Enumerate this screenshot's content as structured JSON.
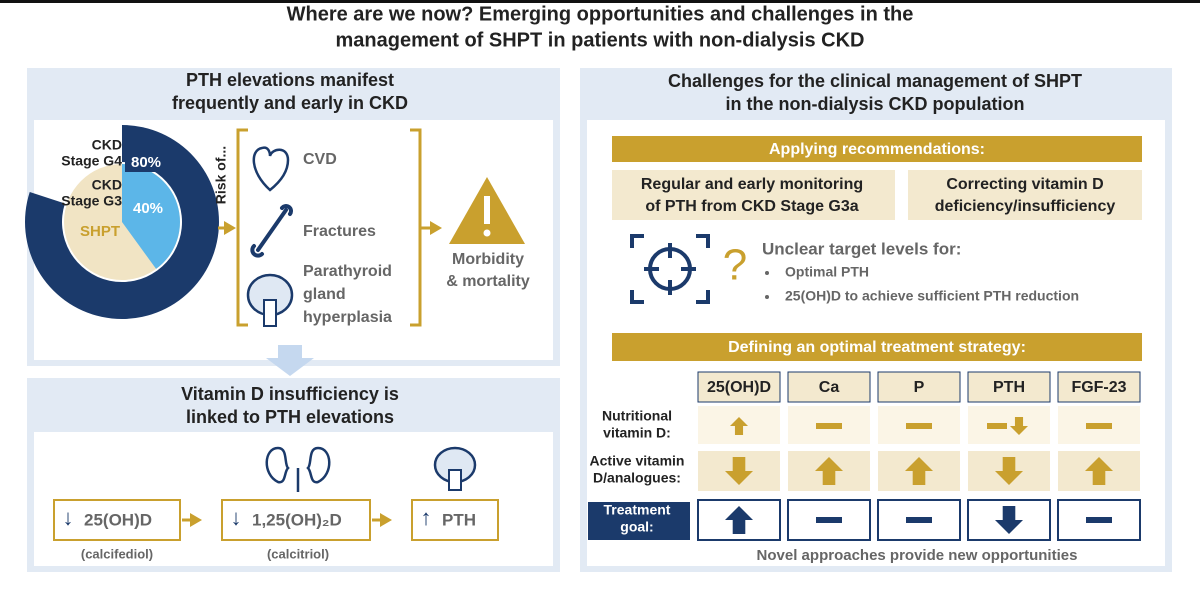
{
  "title": [
    "Where are we now? Emerging opportunities and challenges in the",
    "management of SHPT in patients with non-dialysis CKD"
  ],
  "left_top": {
    "heading": [
      "PTH elevations manifest",
      "frequently and early in CKD"
    ],
    "donut": {
      "segments": [
        {
          "label": [
            "CKD",
            "Stage G4"
          ],
          "value": 80,
          "value_label": "80%"
        },
        {
          "label": [
            "CKD",
            "Stage G3"
          ],
          "value": 40,
          "value_label": "40%"
        }
      ],
      "center_label": "SHPT"
    },
    "risk_label": "Risk of...",
    "risks": [
      [
        "CVD"
      ],
      [
        "Fractures"
      ],
      [
        "Parathyroid",
        "gland",
        "hyperplasia"
      ]
    ],
    "outcome": [
      "Morbidity",
      "& mortality"
    ]
  },
  "left_bottom": {
    "heading": [
      "Vitamin D insufficiency is",
      "linked to PTH elevations"
    ],
    "steps": [
      {
        "arrow": "↓",
        "text": "25(OH)D",
        "note": "(calcifediol)"
      },
      {
        "arrow": "↓",
        "text": "1,25(OH)₂D",
        "note": "(calcitriol)"
      },
      {
        "arrow": "↑",
        "text": "PTH"
      }
    ]
  },
  "right": {
    "heading": [
      "Challenges for the clinical management of SHPT",
      "in the non-dialysis CKD population"
    ],
    "recommendations": {
      "title": "Applying recommendations:",
      "items": [
        [
          "Regular and early monitoring",
          "of PTH from CKD Stage G3a"
        ],
        [
          "Correcting vitamin D",
          "deficiency/insufficiency"
        ]
      ]
    },
    "unclear": {
      "icon_text": "?",
      "title": "Unclear target levels for:",
      "bullets": [
        "Optimal PTH",
        "25(OH)D to achieve sufficient PTH reduction"
      ]
    },
    "strategy": {
      "title": "Defining an optimal treatment strategy:",
      "columns": [
        "25(OH)D",
        "Ca",
        "P",
        "PTH",
        "FGF-23"
      ],
      "rows": [
        [
          "Nutritional",
          "vitamin D:"
        ],
        [
          "Active vitamin",
          "D/analogues:"
        ],
        [
          "Treatment",
          "goal:"
        ]
      ]
    },
    "footer": "Novel approaches provide new opportunities"
  }
}
